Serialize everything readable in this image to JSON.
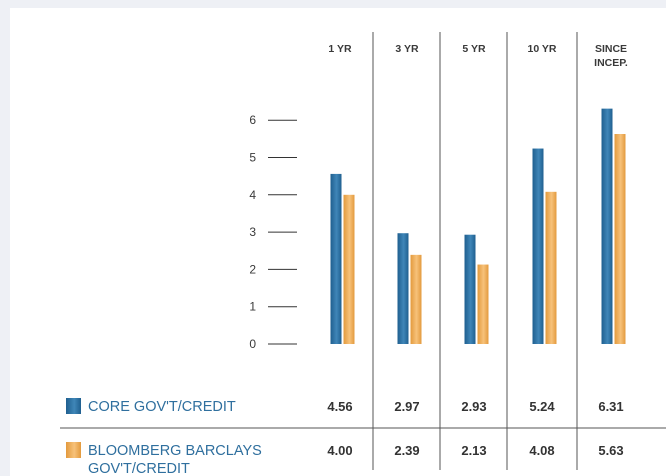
{
  "chart_data": {
    "type": "bar",
    "categories": [
      [
        "1 YR"
      ],
      [
        "3 YR"
      ],
      [
        "5 YR"
      ],
      [
        "10 YR"
      ],
      [
        "SINCE",
        "INCEP."
      ]
    ],
    "series": [
      {
        "name": [
          "CORE GOV'T/CREDIT"
        ],
        "values": [
          4.56,
          2.97,
          2.93,
          5.24,
          6.31
        ],
        "color_top": "#3f86b8",
        "color_bottom": "#1f5f8f"
      },
      {
        "name": [
          "BLOOMBERG BARCLAYS",
          "GOV'T/CREDIT"
        ],
        "values": [
          4.0,
          2.39,
          2.13,
          4.08,
          5.63
        ],
        "color_top": "#f7c27a",
        "color_bottom": "#e39a3d"
      }
    ],
    "value_labels": [
      [
        "4.56",
        "2.97",
        "2.93",
        "5.24",
        "6.31"
      ],
      [
        "4.00",
        "2.39",
        "2.13",
        "4.08",
        "5.63"
      ]
    ],
    "yticks": [
      "0",
      "1",
      "2",
      "3",
      "4",
      "5",
      "6"
    ],
    "ylim": [
      0,
      6
    ],
    "grid": false,
    "legend": "bottom-table"
  }
}
